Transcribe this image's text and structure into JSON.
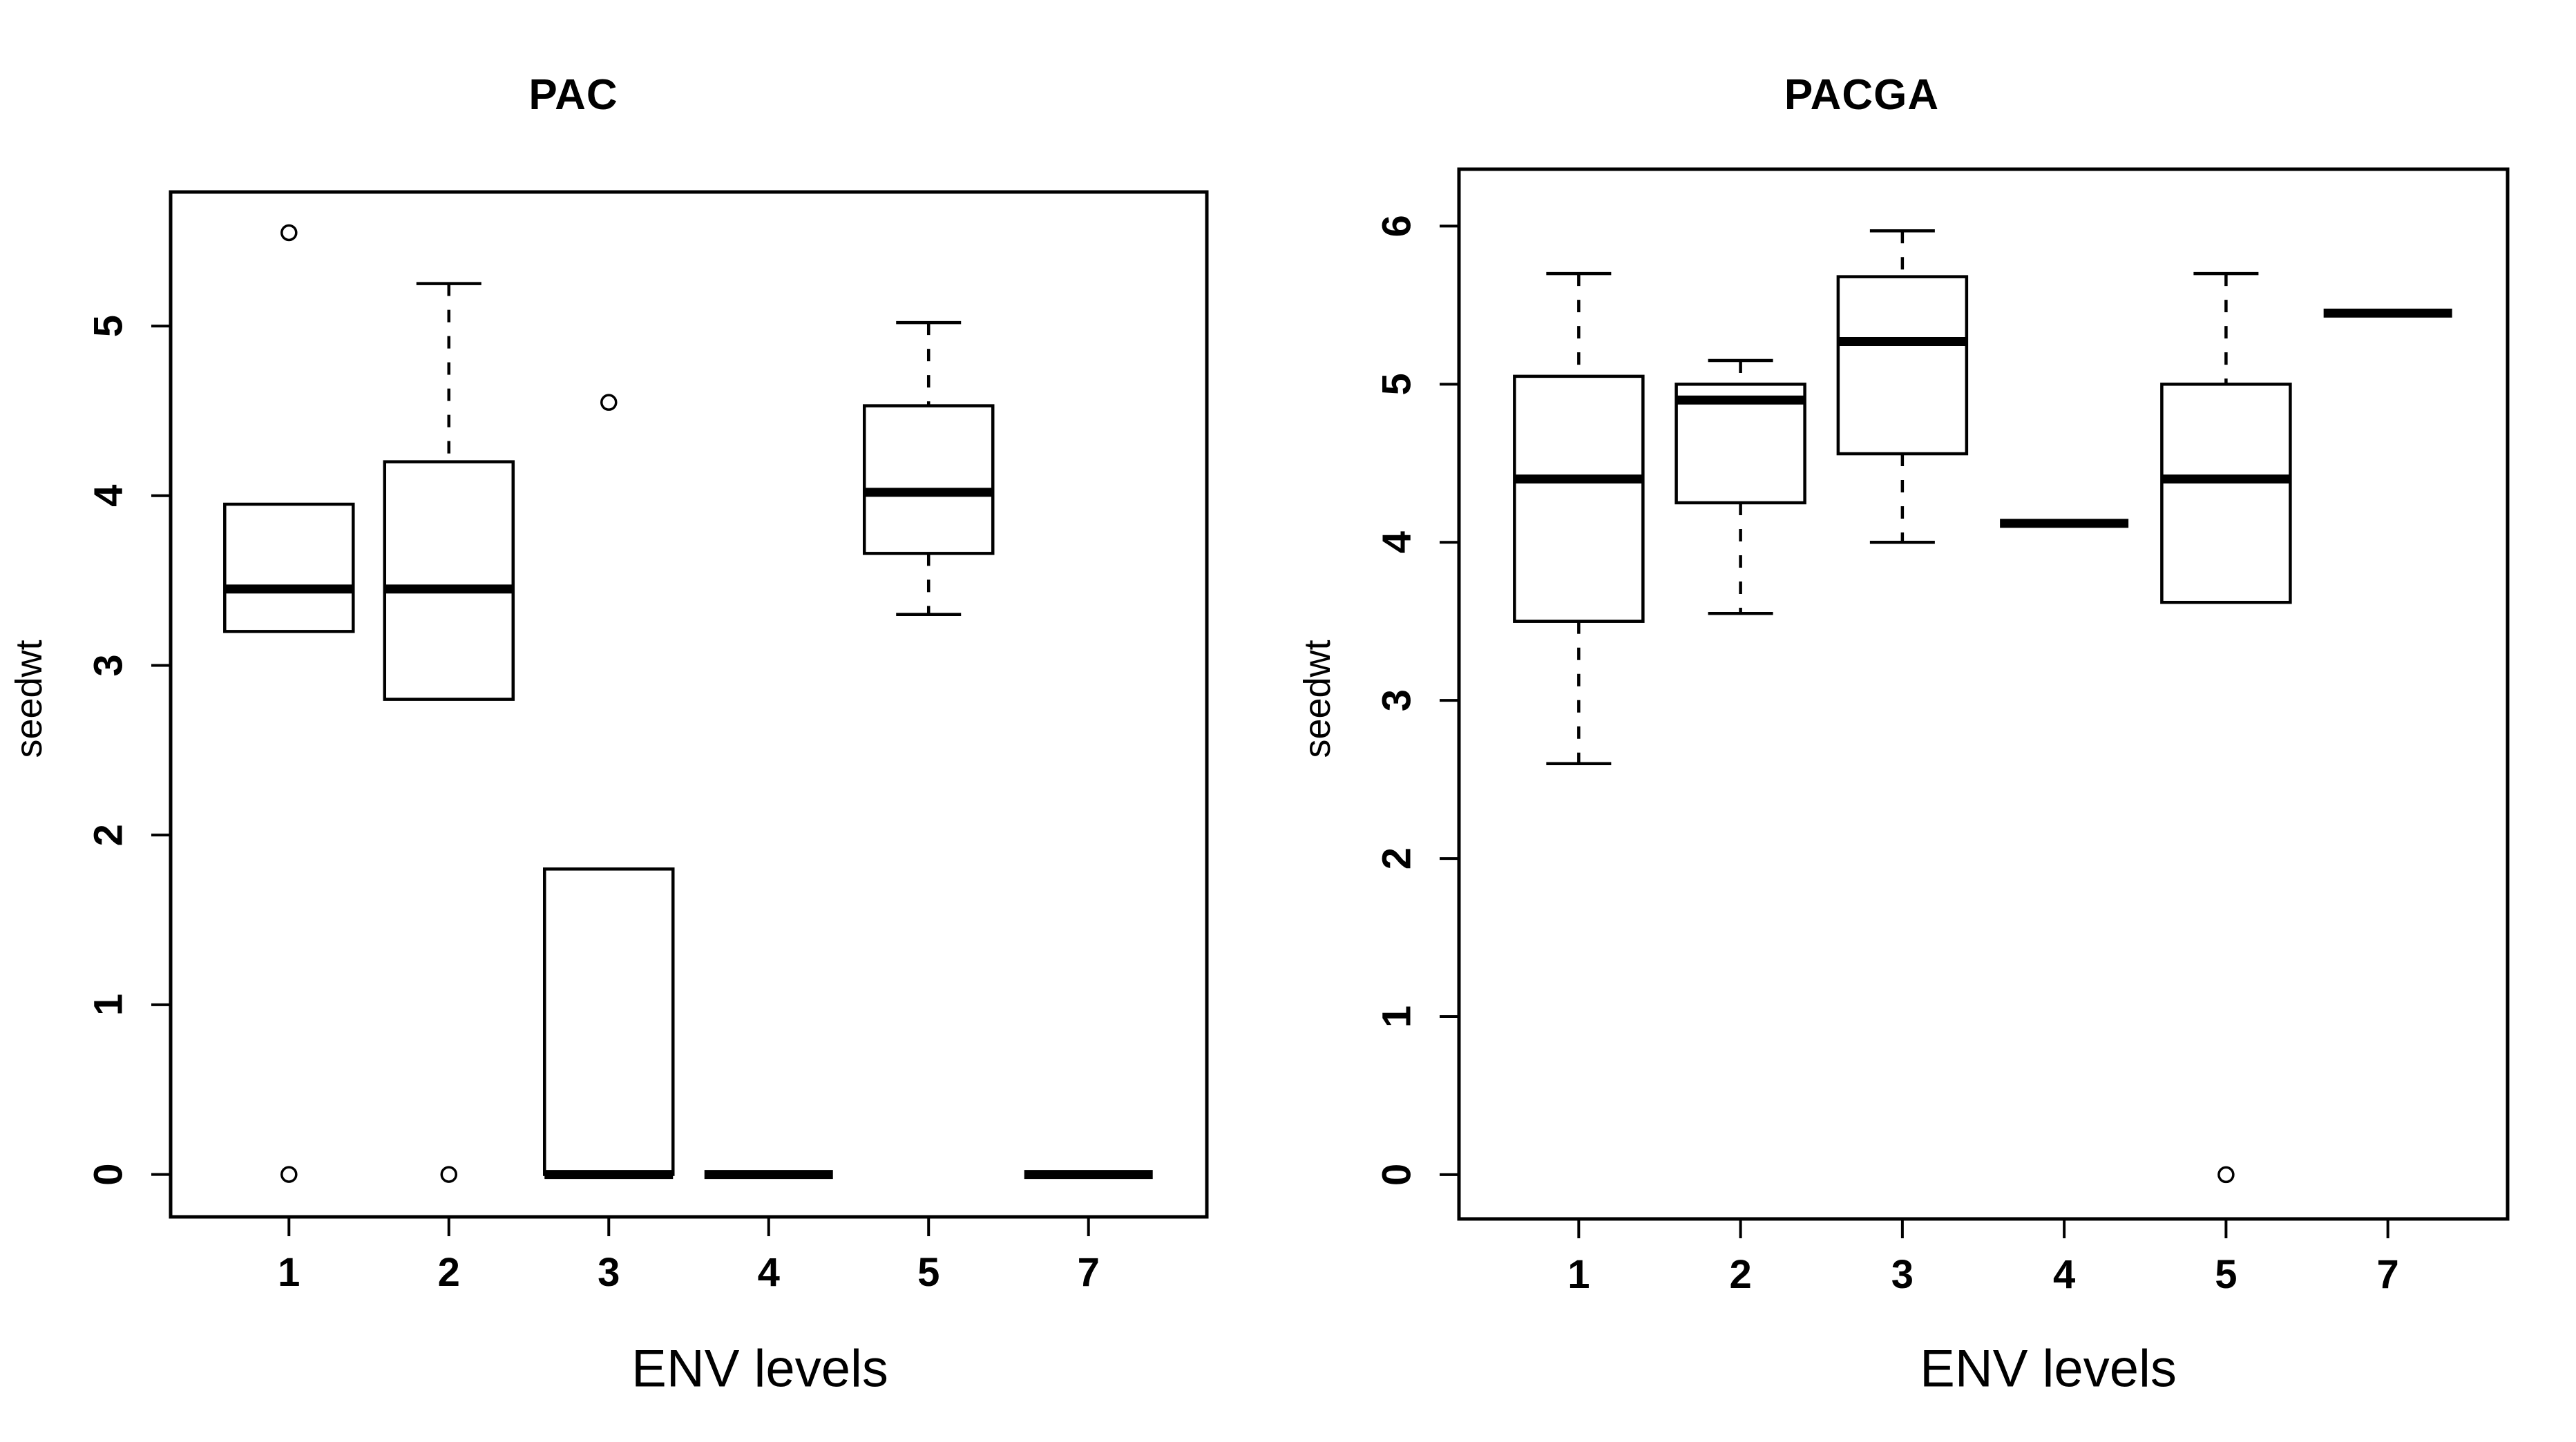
{
  "colors": {
    "ink": "#000000",
    "background": "#ffffff"
  },
  "chart_data": [
    {
      "type": "box",
      "title": "PAC",
      "xlabel": "ENV levels",
      "ylabel": "seedwt",
      "categories": [
        "1",
        "2",
        "3",
        "4",
        "5",
        "7"
      ],
      "yticks": [
        0,
        1,
        2,
        3,
        4,
        5
      ],
      "ylim": [
        -0.25,
        5.79
      ],
      "grid": false,
      "boxes": [
        {
          "category": "1",
          "q1": 3.2,
          "median": 3.45,
          "q3": 3.95,
          "whisker_low": 3.2,
          "whisker_high": 3.95,
          "outliers": [
            5.55,
            0
          ]
        },
        {
          "category": "2",
          "q1": 2.8,
          "median": 3.45,
          "q3": 4.2,
          "whisker_low": 2.8,
          "whisker_high": 5.25,
          "outliers": [
            0
          ]
        },
        {
          "category": "3",
          "q1": 0,
          "median": 0,
          "q3": 1.8,
          "whisker_low": 0,
          "whisker_high": 1.8,
          "outliers": [
            4.55
          ]
        },
        {
          "category": "4",
          "q1": 0,
          "median": 0,
          "q3": 0,
          "whisker_low": 0,
          "whisker_high": 0,
          "outliers": []
        },
        {
          "category": "5",
          "q1": 3.66,
          "median": 4.02,
          "q3": 4.53,
          "whisker_low": 3.3,
          "whisker_high": 5.02,
          "outliers": []
        },
        {
          "category": "7",
          "q1": 0,
          "median": 0,
          "q3": 0,
          "whisker_low": 0,
          "whisker_high": 0,
          "outliers": []
        }
      ]
    },
    {
      "type": "box",
      "title": "PACGA",
      "xlabel": "ENV levels",
      "ylabel": "seedwt",
      "categories": [
        "1",
        "2",
        "3",
        "4",
        "5",
        "7"
      ],
      "yticks": [
        0,
        1,
        2,
        3,
        4,
        5,
        6
      ],
      "ylim": [
        -0.28,
        6.36
      ],
      "grid": false,
      "boxes": [
        {
          "category": "1",
          "q1": 3.5,
          "median": 4.4,
          "q3": 5.05,
          "whisker_low": 2.6,
          "whisker_high": 5.7,
          "outliers": []
        },
        {
          "category": "2",
          "q1": 4.25,
          "median": 4.9,
          "q3": 5.0,
          "whisker_low": 3.55,
          "whisker_high": 5.15,
          "outliers": []
        },
        {
          "category": "3",
          "q1": 4.56,
          "median": 5.27,
          "q3": 5.68,
          "whisker_low": 4.0,
          "whisker_high": 5.97,
          "outliers": []
        },
        {
          "category": "4",
          "q1": 4.12,
          "median": 4.12,
          "q3": 4.12,
          "whisker_low": 4.12,
          "whisker_high": 4.12,
          "outliers": []
        },
        {
          "category": "5",
          "q1": 3.62,
          "median": 4.4,
          "q3": 5.0,
          "whisker_low": 3.62,
          "whisker_high": 5.7,
          "outliers": [
            0
          ]
        },
        {
          "category": "7",
          "q1": 5.45,
          "median": 5.45,
          "q3": 5.45,
          "whisker_low": 5.45,
          "whisker_high": 5.45,
          "outliers": []
        }
      ]
    }
  ]
}
